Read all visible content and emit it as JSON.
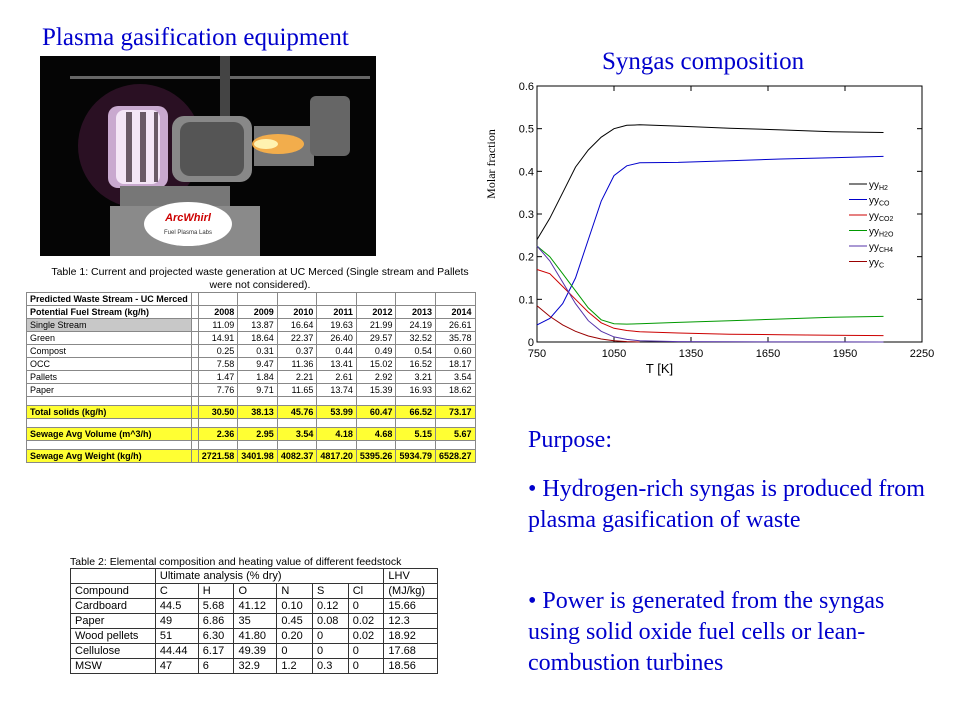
{
  "photo_title": "Plasma gasification equipment",
  "photo": {
    "logo_text_1": "ArcWhirl",
    "logo_text_2": "Fuel Plasma Labs"
  },
  "table1": {
    "caption": "Table 1: Current and projected waste generation at UC Merced (Single stream and Pallets were not considered).",
    "section_title": "Predicted Waste Stream - UC Merced",
    "stream_label": "Potential Fuel Stream (kg/h)",
    "years": [
      "2008",
      "2009",
      "2010",
      "2011",
      "2012",
      "2013",
      "2014"
    ],
    "rows": [
      {
        "label": "Single Stream",
        "values": [
          "11.09",
          "13.87",
          "16.64",
          "19.63",
          "21.99",
          "24.19",
          "26.61"
        ]
      },
      {
        "label": "Green",
        "values": [
          "14.91",
          "18.64",
          "22.37",
          "26.40",
          "29.57",
          "32.52",
          "35.78"
        ]
      },
      {
        "label": "Compost",
        "values": [
          "0.25",
          "0.31",
          "0.37",
          "0.44",
          "0.49",
          "0.54",
          "0.60"
        ]
      },
      {
        "label": "OCC",
        "values": [
          "7.58",
          "9.47",
          "11.36",
          "13.41",
          "15.02",
          "16.52",
          "18.17"
        ]
      },
      {
        "label": "Pallets",
        "values": [
          "1.47",
          "1.84",
          "2.21",
          "2.61",
          "2.92",
          "3.21",
          "3.54"
        ]
      },
      {
        "label": "Paper",
        "values": [
          "7.76",
          "9.71",
          "11.65",
          "13.74",
          "15.39",
          "16.93",
          "18.62"
        ]
      }
    ],
    "total": {
      "label": "Total solids (kg/h)",
      "values": [
        "30.50",
        "38.13",
        "45.76",
        "53.99",
        "60.47",
        "66.52",
        "73.17"
      ]
    },
    "sewage_volume": {
      "label": "Sewage Avg Volume (m^3/h)",
      "values": [
        "2.36",
        "2.95",
        "3.54",
        "4.18",
        "4.68",
        "5.15",
        "5.67"
      ]
    },
    "sewage_weight": {
      "label": "Sewage Avg Weight (kg/h)",
      "values": [
        "2721.58",
        "3401.98",
        "4082.37",
        "4817.20",
        "5395.26",
        "5934.79",
        "6528.27"
      ]
    }
  },
  "table2": {
    "caption": "Table 2: Elemental composition and heating value of different feedstock",
    "group_header": "Ultimate analysis (% dry)",
    "lhv_header": "LHV",
    "columns": [
      "Compound",
      "C",
      "H",
      "O",
      "N",
      "S",
      "Cl",
      "(MJ/kg)"
    ],
    "rows": [
      [
        "Cardboard",
        "44.5",
        "5.68",
        "41.12",
        "0.10",
        "0.12",
        "0",
        "15.66"
      ],
      [
        "Paper",
        "49",
        "6.86",
        "35",
        "0.45",
        "0.08",
        "0.02",
        "12.3"
      ],
      [
        "Wood pellets",
        "51",
        "6.30",
        "41.80",
        "0.20",
        "0",
        "0.02",
        "18.92"
      ],
      [
        "Cellulose",
        "44.44",
        "6.17",
        "49.39",
        "0",
        "0",
        "0",
        "17.68"
      ],
      [
        "MSW",
        "47",
        "6",
        "32.9",
        "1.2",
        "0.3",
        "0",
        "18.56"
      ]
    ]
  },
  "chart_title": "Syngas composition",
  "purpose": {
    "heading": "Purpose:",
    "bullet1": "• Hydrogen-rich syngas is produced from plasma gasification of waste",
    "bullet2": "• Power is generated from the syngas using solid oxide fuel cells or lean-combustion turbines"
  },
  "chart_data": {
    "type": "line",
    "title": "Syngas composition",
    "xlabel": "T  [K]",
    "ylabel": "Molar fraction",
    "xlim": [
      750,
      2250
    ],
    "ylim": [
      0,
      0.6
    ],
    "xticks": [
      "750",
      "1050",
      "1350",
      "1650",
      "1950",
      "2250"
    ],
    "yticks": [
      "0",
      "0.1",
      "0.2",
      "0.3",
      "0.4",
      "0.5",
      "0.6"
    ],
    "legend_position": "right",
    "series": [
      {
        "name": "yH2",
        "legend_main": "yy",
        "legend_sub": "H2",
        "color": "#000000",
        "x": [
          750,
          800,
          850,
          900,
          950,
          1000,
          1050,
          1100,
          1150,
          1300,
          1500,
          1700,
          1900,
          2100
        ],
        "y": [
          0.24,
          0.29,
          0.35,
          0.41,
          0.45,
          0.48,
          0.5,
          0.508,
          0.509,
          0.506,
          0.501,
          0.497,
          0.493,
          0.491
        ]
      },
      {
        "name": "yCO",
        "legend_main": "yy",
        "legend_sub": "CO",
        "color": "#0000cc",
        "x": [
          750,
          800,
          850,
          900,
          950,
          1000,
          1050,
          1100,
          1150,
          1300,
          1500,
          1700,
          1900,
          2100
        ],
        "y": [
          0.04,
          0.055,
          0.09,
          0.15,
          0.24,
          0.33,
          0.39,
          0.413,
          0.42,
          0.421,
          0.425,
          0.429,
          0.432,
          0.435
        ]
      },
      {
        "name": "yCO2",
        "legend_main": "yy",
        "legend_sub": "CO2",
        "color": "#cc0000",
        "x": [
          750,
          800,
          850,
          900,
          950,
          1000,
          1050,
          1100,
          1150,
          1300,
          1500,
          1700,
          1900,
          2100
        ],
        "y": [
          0.17,
          0.16,
          0.13,
          0.1,
          0.07,
          0.045,
          0.032,
          0.027,
          0.024,
          0.021,
          0.018,
          0.017,
          0.016,
          0.015
        ]
      },
      {
        "name": "yH2O",
        "legend_main": "yy",
        "legend_sub": "H2O",
        "color": "#009900",
        "x": [
          750,
          800,
          850,
          900,
          950,
          1000,
          1050,
          1100,
          1150,
          1300,
          1500,
          1700,
          1900,
          2100
        ],
        "y": [
          0.225,
          0.2,
          0.16,
          0.12,
          0.08,
          0.052,
          0.043,
          0.042,
          0.043,
          0.046,
          0.05,
          0.054,
          0.058,
          0.06
        ]
      },
      {
        "name": "yCH4",
        "legend_main": "yy",
        "legend_sub": "CH4",
        "color": "#5533aa",
        "x": [
          750,
          800,
          850,
          900,
          950,
          1000,
          1050,
          1100,
          1150,
          1300,
          1500,
          1700,
          1900,
          2100
        ],
        "y": [
          0.225,
          0.19,
          0.14,
          0.09,
          0.05,
          0.025,
          0.012,
          0.006,
          0.003,
          0.001,
          0.0005,
          0.0003,
          0.0002,
          0.0001
        ]
      },
      {
        "name": "yC",
        "legend_main": "yy",
        "legend_sub": "C",
        "color": "#990000",
        "x": [
          750,
          800,
          850,
          900,
          950,
          1000,
          1050,
          1100,
          1150
        ],
        "y": [
          0.085,
          0.06,
          0.04,
          0.025,
          0.014,
          0.007,
          0.003,
          0.001,
          0.0
        ]
      }
    ]
  }
}
